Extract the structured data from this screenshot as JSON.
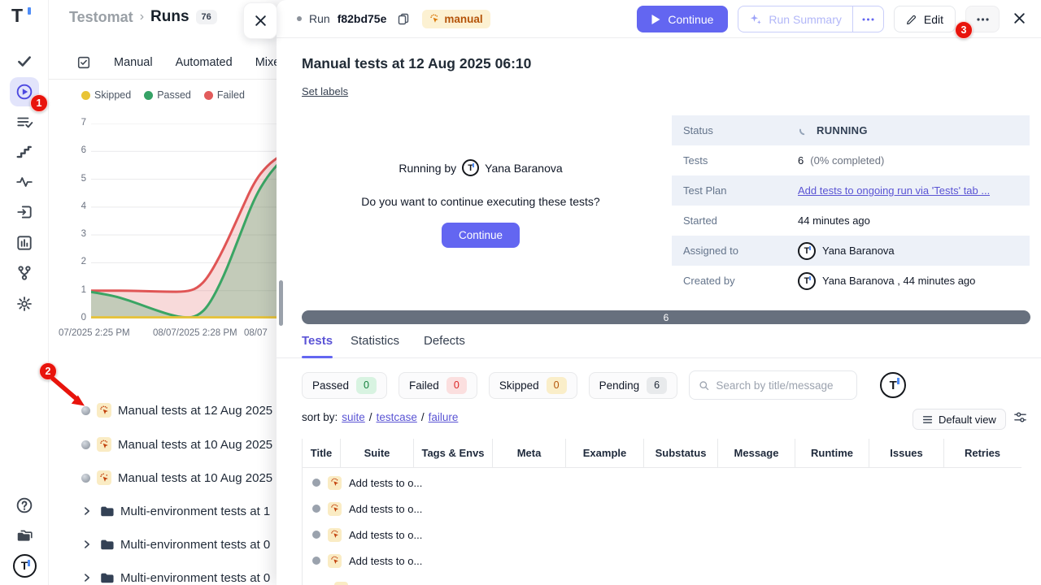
{
  "colors": {
    "accent": "#6366f1",
    "annotation": "#e8140c",
    "passed": "#36a266",
    "failed": "#e25c5c",
    "skipped": "#e9c436",
    "progress_bar": "#67707e"
  },
  "annotations": {
    "badges": [
      "1",
      "2",
      "3"
    ]
  },
  "sidebar": {
    "logo": "T",
    "avatar_initial": "T",
    "icons": [
      "check-icon",
      "run-play-icon",
      "test-list-icon",
      "steps-icon",
      "pulse-icon",
      "import-icon",
      "analytics-icon",
      "branch-icon",
      "settings-gear-icon",
      "help-icon",
      "projects-icon",
      "profile-logo-icon"
    ]
  },
  "runs_panel": {
    "breadcrumb": {
      "app": "Testomat",
      "separator": "›",
      "section": "Runs",
      "count": "76"
    },
    "tabs": [
      "Manual",
      "Automated",
      "Mixed"
    ],
    "legend": [
      {
        "label": "Skipped",
        "color": "#e9c436"
      },
      {
        "label": "Passed",
        "color": "#36a266"
      },
      {
        "label": "Failed",
        "color": "#e25c5c"
      }
    ],
    "runs": [
      "Manual tests at 12 Aug 2025",
      "Manual tests at 10 Aug 2025",
      "Manual tests at 10 Aug 2025"
    ],
    "folders": [
      "Multi-environment tests at 1",
      "Multi-environment tests at 0",
      "Multi-environment tests at 0"
    ]
  },
  "chart_data": {
    "type": "area",
    "title": "",
    "xlabel": "",
    "ylabel": "",
    "ylim": [
      0,
      7
    ],
    "yticks": [
      7,
      6,
      5,
      4,
      3,
      2,
      1,
      0
    ],
    "xticklabels": [
      "07/2025 2:25 PM",
      "08/07/2025 2:28 PM",
      "08/07"
    ],
    "grid": true,
    "legend_position": "top",
    "series": [
      {
        "name": "Failed",
        "color": "#e05555",
        "fill": "rgba(224,85,85,0.22)",
        "points": [
          [
            0,
            1
          ],
          [
            0.1,
            1
          ],
          [
            0.2,
            1
          ],
          [
            0.3,
            0.98
          ],
          [
            0.4,
            0.96
          ],
          [
            0.5,
            0.96
          ],
          [
            0.56,
            1.08
          ],
          [
            0.62,
            1.5
          ],
          [
            0.7,
            2.5
          ],
          [
            0.78,
            3.7
          ],
          [
            0.86,
            4.9
          ],
          [
            0.93,
            5.5
          ],
          [
            1,
            5.85
          ]
        ]
      },
      {
        "name": "Passed",
        "color": "#3aa564",
        "fill": "rgba(58,165,100,0.28)",
        "points": [
          [
            0,
            0.95
          ],
          [
            0.1,
            0.85
          ],
          [
            0.2,
            0.65
          ],
          [
            0.3,
            0.4
          ],
          [
            0.42,
            0.12
          ],
          [
            0.5,
            0.02
          ],
          [
            0.56,
            0.08
          ],
          [
            0.62,
            0.45
          ],
          [
            0.7,
            1.5
          ],
          [
            0.78,
            2.9
          ],
          [
            0.86,
            4.3
          ],
          [
            0.93,
            5.1
          ],
          [
            1,
            5.65
          ]
        ]
      },
      {
        "name": "Skipped",
        "color": "#e6c33c",
        "fill": "none",
        "points": [
          [
            0,
            0.04
          ],
          [
            1,
            0.04
          ]
        ]
      }
    ]
  },
  "detail": {
    "header": {
      "run_label": "Run",
      "run_id": "f82bd75e",
      "type_badge": "manual",
      "continue_label": "Continue",
      "run_summary_label": "Run Summary",
      "edit_label": "Edit"
    },
    "title": "Manual tests at 12 Aug 2025 06:10",
    "set_labels_label": "Set labels",
    "prompt": {
      "running_by": "Running by",
      "user": "Yana Baranova",
      "question": "Do you want to continue executing these tests?",
      "continue_label": "Continue"
    },
    "info": [
      {
        "label": "Status",
        "value": "RUNNING"
      },
      {
        "label": "Tests",
        "value": "6",
        "note": "(0% completed)"
      },
      {
        "label": "Test Plan",
        "value": "Add tests to ongoing run via 'Tests' tab ..."
      },
      {
        "label": "Started",
        "value": "44 minutes ago"
      },
      {
        "label": "Assigned to",
        "value": "Yana Baranova"
      },
      {
        "label": "Created by",
        "value": "Yana Baranova , 44 minutes ago"
      }
    ],
    "progress_value": "6",
    "tabs": [
      "Tests",
      "Statistics",
      "Defects"
    ],
    "filters": [
      {
        "label": "Passed",
        "count": "0"
      },
      {
        "label": "Failed",
        "count": "0"
      },
      {
        "label": "Skipped",
        "count": "0"
      },
      {
        "label": "Pending",
        "count": "6"
      }
    ],
    "search_placeholder": "Search by title/message",
    "sort": {
      "prefix": "sort by:",
      "separator": "/",
      "links": [
        "suite",
        "testcase",
        "failure"
      ]
    },
    "view_button": "Default view",
    "table": {
      "columns": [
        "Title",
        "Suite",
        "Tags & Envs",
        "Meta",
        "Example",
        "Substatus",
        "Message",
        "Runtime",
        "Issues",
        "Retries"
      ],
      "rows": [
        {
          "title": "Add tests to o..."
        },
        {
          "title": "Add tests to o..."
        },
        {
          "title": "Add tests to o..."
        },
        {
          "title": "Add tests to o..."
        }
      ]
    }
  }
}
